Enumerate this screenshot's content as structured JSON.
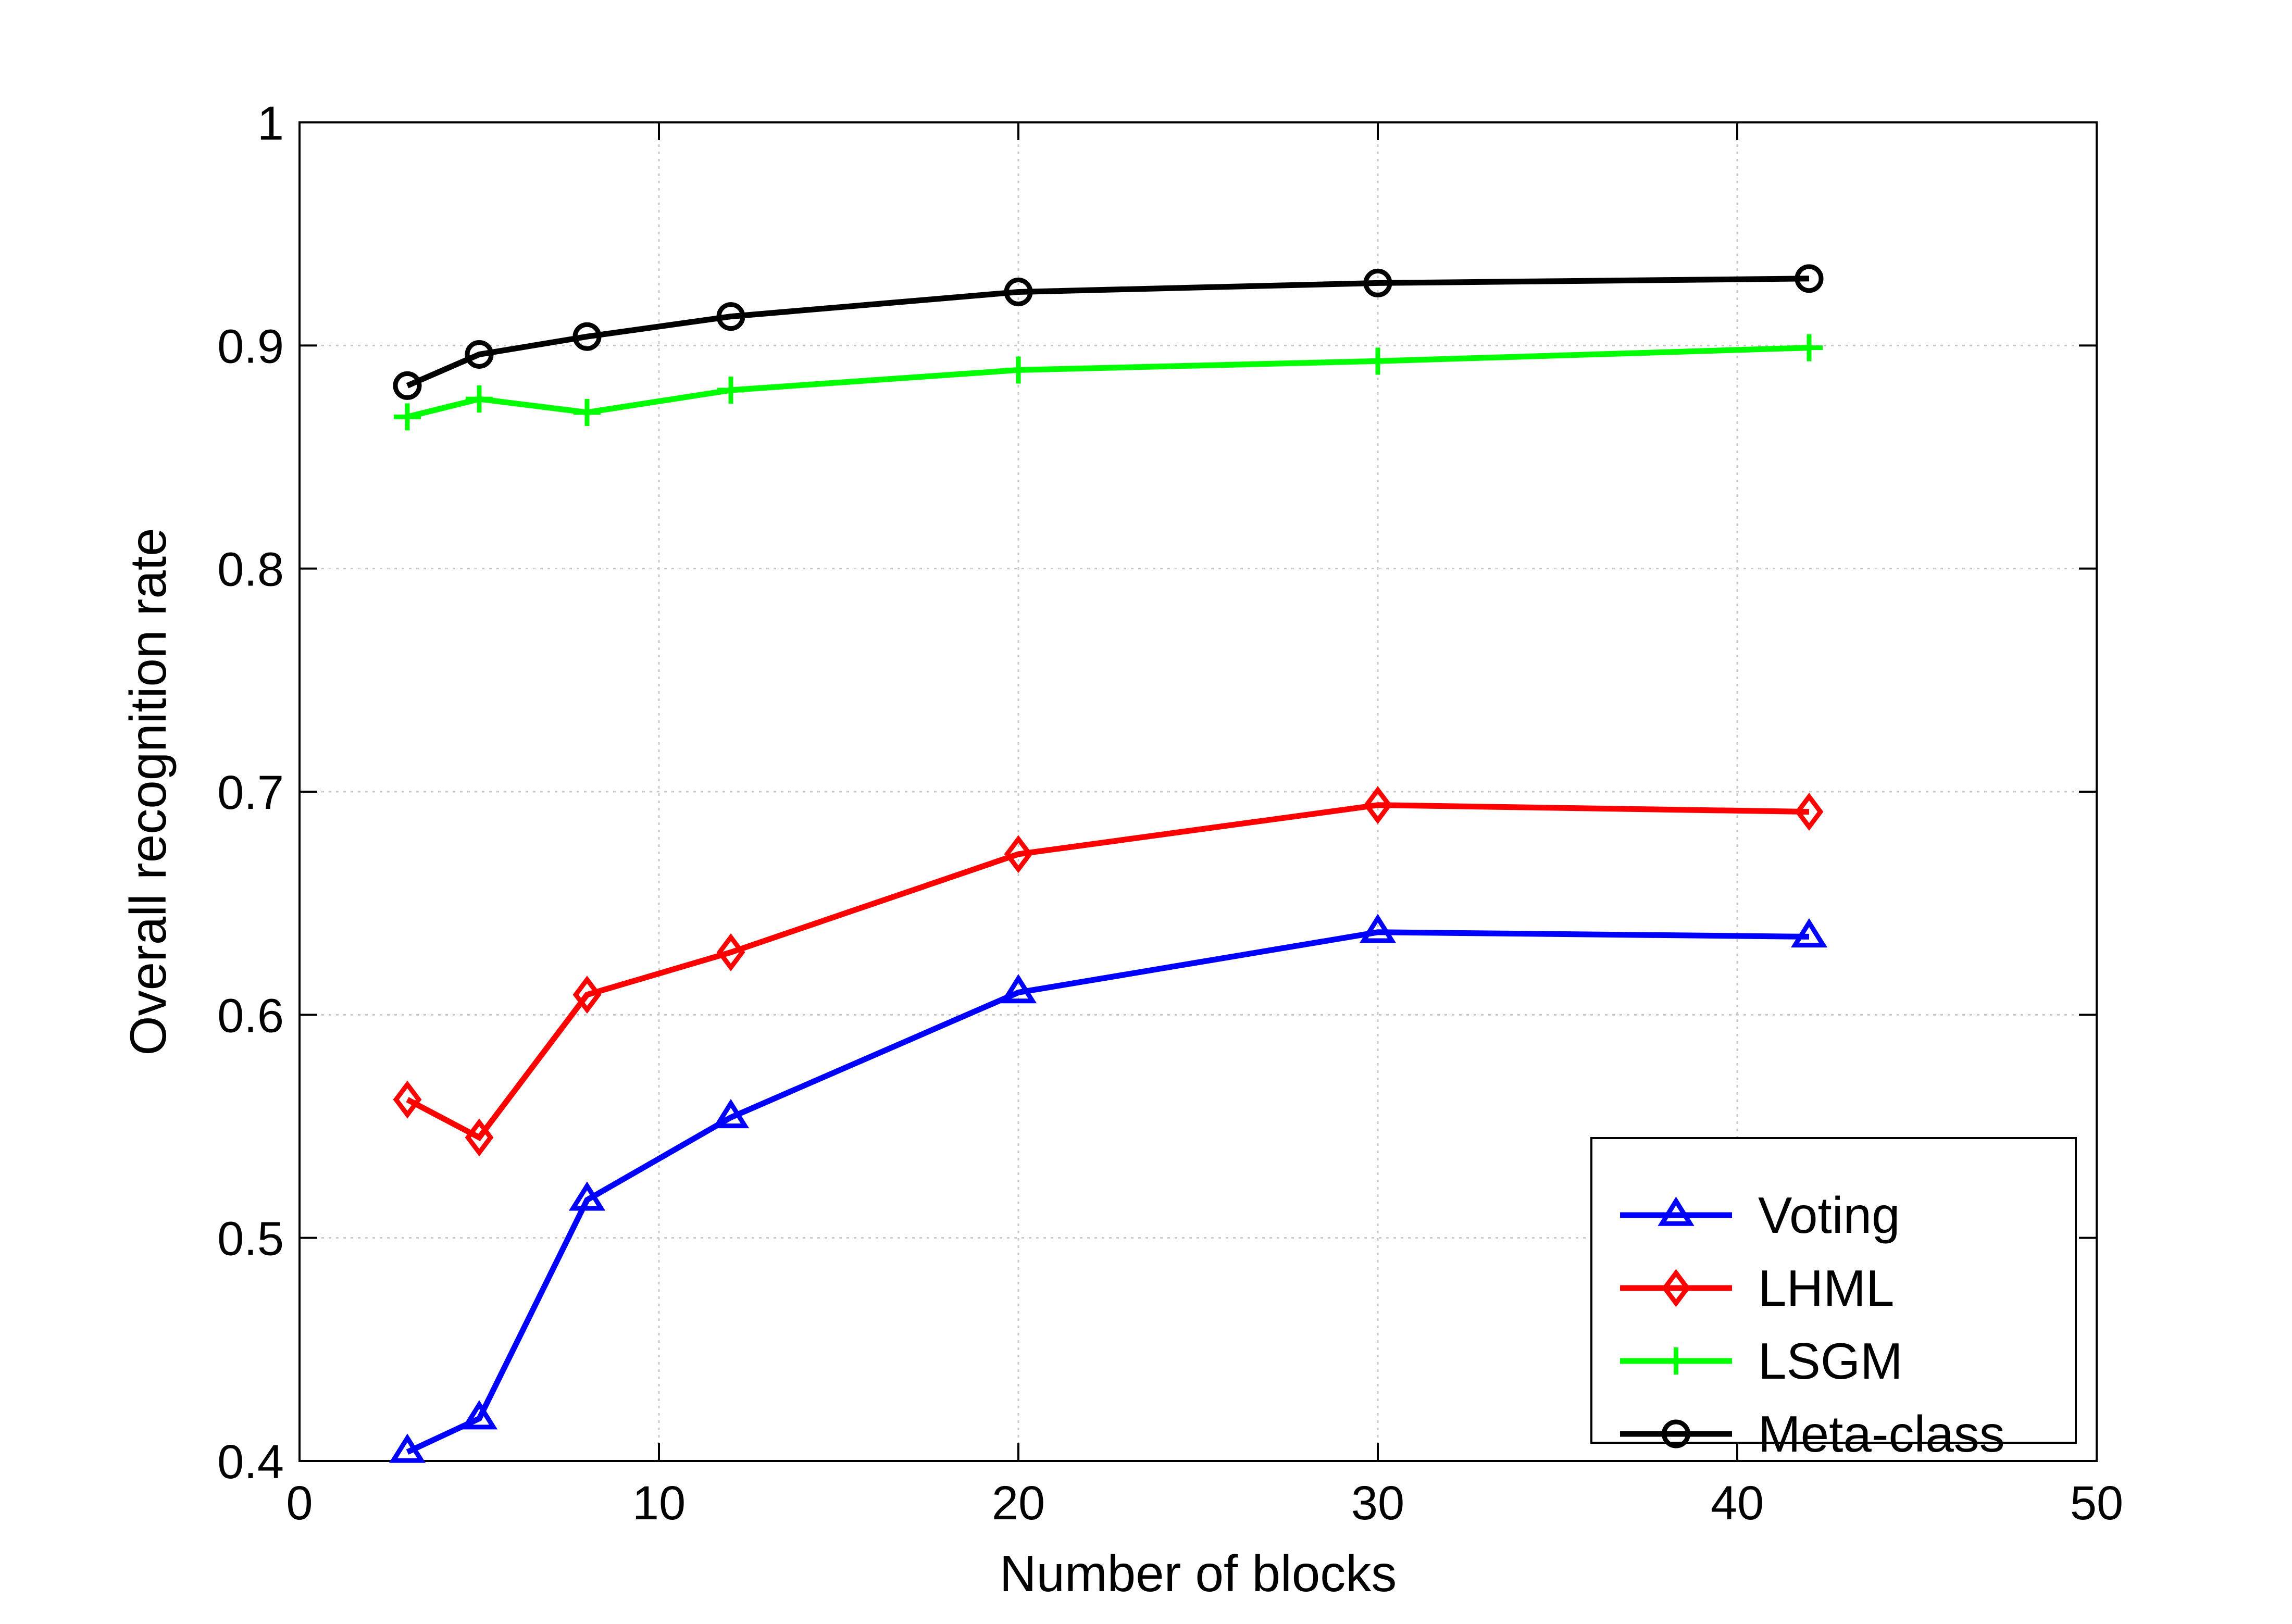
{
  "chart_data": {
    "type": "line",
    "title": "",
    "xlabel": "Number of blocks",
    "ylabel": "Overall recognition rate",
    "xlim": [
      0,
      50
    ],
    "ylim": [
      0.4,
      1
    ],
    "xticks": [
      0,
      10,
      20,
      30,
      40,
      50
    ],
    "yticks": [
      0.4,
      0.5,
      0.6,
      0.7,
      0.8,
      0.9,
      1
    ],
    "xtick_labels": [
      "0",
      "10",
      "20",
      "30",
      "40",
      "50"
    ],
    "ytick_labels": [
      "0.4",
      "0.5",
      "0.6",
      "0.7",
      "0.8",
      "0.9",
      "1"
    ],
    "grid": true,
    "legend_position": "bottom-right",
    "x": [
      3,
      5,
      8,
      12,
      20,
      30,
      42
    ],
    "series": [
      {
        "name": "Voting",
        "color": "#0000ff",
        "marker": "triangle",
        "values": [
          0.404,
          0.419,
          0.517,
          0.554,
          0.61,
          0.637,
          0.635
        ]
      },
      {
        "name": "LHML",
        "color": "#ff0000",
        "marker": "diamond",
        "values": [
          0.562,
          0.545,
          0.609,
          0.628,
          0.672,
          0.694,
          0.691
        ]
      },
      {
        "name": "LSGM",
        "color": "#00ff00",
        "marker": "plus",
        "values": [
          0.868,
          0.876,
          0.87,
          0.88,
          0.889,
          0.893,
          0.899
        ]
      },
      {
        "name": "Meta-class",
        "color": "#000000",
        "marker": "circle",
        "values": [
          0.882,
          0.896,
          0.904,
          0.913,
          0.924,
          0.928,
          0.93
        ]
      }
    ]
  }
}
